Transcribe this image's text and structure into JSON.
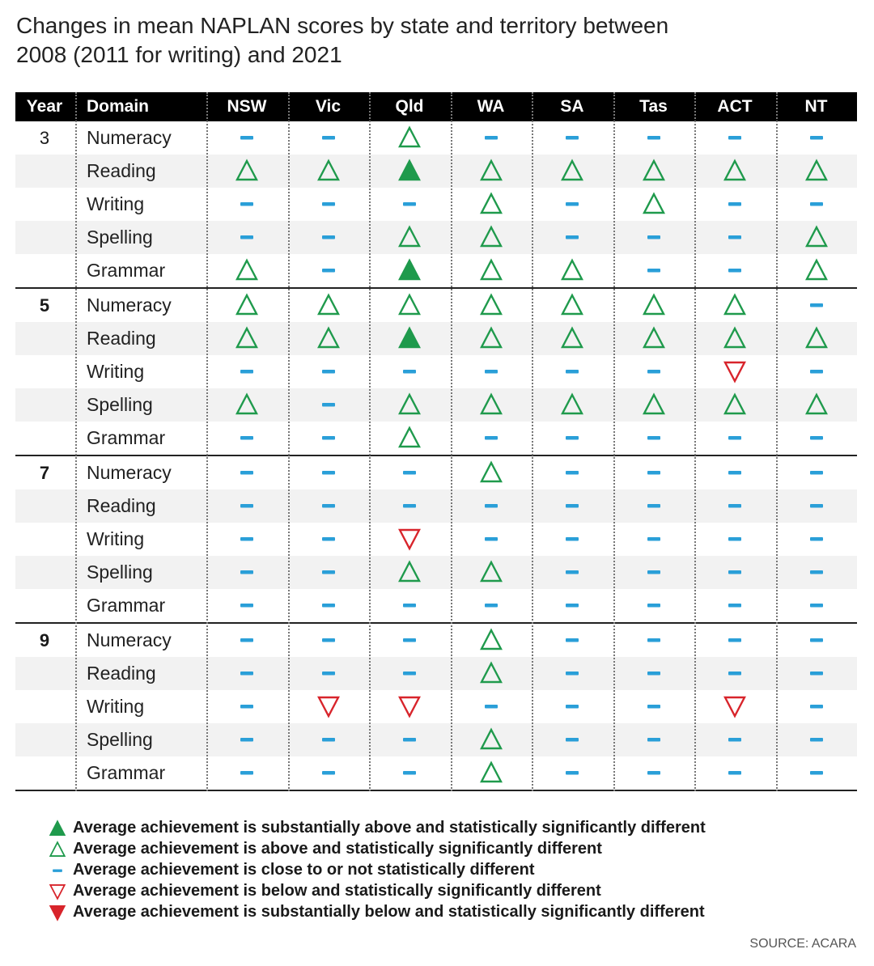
{
  "title_line1": "Changes in mean NAPLAN scores by state and territory between",
  "title_line2": "2008 (2011 for writing) and 2021",
  "source": "SOURCE: ACARA",
  "colors": {
    "green": "#1f9a4c",
    "red": "#d8242b",
    "blue": "#2a9fd8"
  },
  "chart_data": {
    "type": "table",
    "columns": [
      "Year",
      "Domain",
      "NSW",
      "Vic",
      "Qld",
      "WA",
      "SA",
      "Tas",
      "ACT",
      "NT"
    ],
    "states": [
      "NSW",
      "Vic",
      "Qld",
      "WA",
      "SA",
      "Tas",
      "ACT",
      "NT"
    ],
    "symbol_key": {
      "SA+": "substantially above",
      "A": "above",
      "-": "close to or not different",
      "B": "below",
      "SB-": "substantially below"
    },
    "groups": [
      {
        "year": "3",
        "rows": [
          {
            "domain": "Numeracy",
            "values": [
              "-",
              "-",
              "A",
              "-",
              "-",
              "-",
              "-",
              "-"
            ]
          },
          {
            "domain": "Reading",
            "values": [
              "A",
              "A",
              "SA+",
              "A",
              "A",
              "A",
              "A",
              "A"
            ]
          },
          {
            "domain": "Writing",
            "values": [
              "-",
              "-",
              "-",
              "A",
              "-",
              "A",
              "-",
              "-"
            ]
          },
          {
            "domain": "Spelling",
            "values": [
              "-",
              "-",
              "A",
              "A",
              "-",
              "-",
              "-",
              "A"
            ]
          },
          {
            "domain": "Grammar",
            "values": [
              "A",
              "-",
              "SA+",
              "A",
              "A",
              "-",
              "-",
              "A"
            ]
          }
        ]
      },
      {
        "year": "5",
        "rows": [
          {
            "domain": "Numeracy",
            "values": [
              "A",
              "A",
              "A",
              "A",
              "A",
              "A",
              "A",
              "-"
            ]
          },
          {
            "domain": "Reading",
            "values": [
              "A",
              "A",
              "SA+",
              "A",
              "A",
              "A",
              "A",
              "A"
            ]
          },
          {
            "domain": "Writing",
            "values": [
              "-",
              "-",
              "-",
              "-",
              "-",
              "-",
              "B",
              "-"
            ]
          },
          {
            "domain": "Spelling",
            "values": [
              "A",
              "-",
              "A",
              "A",
              "A",
              "A",
              "A",
              "A"
            ]
          },
          {
            "domain": "Grammar",
            "values": [
              "-",
              "-",
              "A",
              "-",
              "-",
              "-",
              "-",
              "-"
            ]
          }
        ]
      },
      {
        "year": "7",
        "rows": [
          {
            "domain": "Numeracy",
            "values": [
              "-",
              "-",
              "-",
              "A",
              "-",
              "-",
              "-",
              "-"
            ]
          },
          {
            "domain": "Reading",
            "values": [
              "-",
              "-",
              "-",
              "-",
              "-",
              "-",
              "-",
              "-"
            ]
          },
          {
            "domain": "Writing",
            "values": [
              "-",
              "-",
              "B",
              "-",
              "-",
              "-",
              "-",
              "-"
            ]
          },
          {
            "domain": "Spelling",
            "values": [
              "-",
              "-",
              "A",
              "A",
              "-",
              "-",
              "-",
              "-"
            ]
          },
          {
            "domain": "Grammar",
            "values": [
              "-",
              "-",
              "-",
              "-",
              "-",
              "-",
              "-",
              "-"
            ]
          }
        ]
      },
      {
        "year": "9",
        "rows": [
          {
            "domain": "Numeracy",
            "values": [
              "-",
              "-",
              "-",
              "A",
              "-",
              "-",
              "-",
              "-"
            ]
          },
          {
            "domain": "Reading",
            "values": [
              "-",
              "-",
              "-",
              "A",
              "-",
              "-",
              "-",
              "-"
            ]
          },
          {
            "domain": "Writing",
            "values": [
              "-",
              "B",
              "B",
              "-",
              "-",
              "-",
              "B",
              "-"
            ]
          },
          {
            "domain": "Spelling",
            "values": [
              "-",
              "-",
              "-",
              "A",
              "-",
              "-",
              "-",
              "-"
            ]
          },
          {
            "domain": "Grammar",
            "values": [
              "-",
              "-",
              "-",
              "A",
              "-",
              "-",
              "-",
              "-"
            ]
          }
        ]
      }
    ],
    "legend": [
      {
        "symbol": "SA+",
        "icon": "filled-up-triangle-green",
        "label": "Average achievement is substantially above and statistically significantly different"
      },
      {
        "symbol": "A",
        "icon": "outline-up-triangle-green",
        "label": "Average achievement is above and statistically significantly different"
      },
      {
        "symbol": "-",
        "icon": "blue-dash",
        "label": "Average achievement is close to or not statistically different"
      },
      {
        "symbol": "B",
        "icon": "outline-down-triangle-red",
        "label": "Average achievement is below and statistically significantly different"
      },
      {
        "symbol": "SB-",
        "icon": "filled-down-triangle-red",
        "label": "Average achievement is substantially below and statistically significantly different"
      }
    ]
  }
}
